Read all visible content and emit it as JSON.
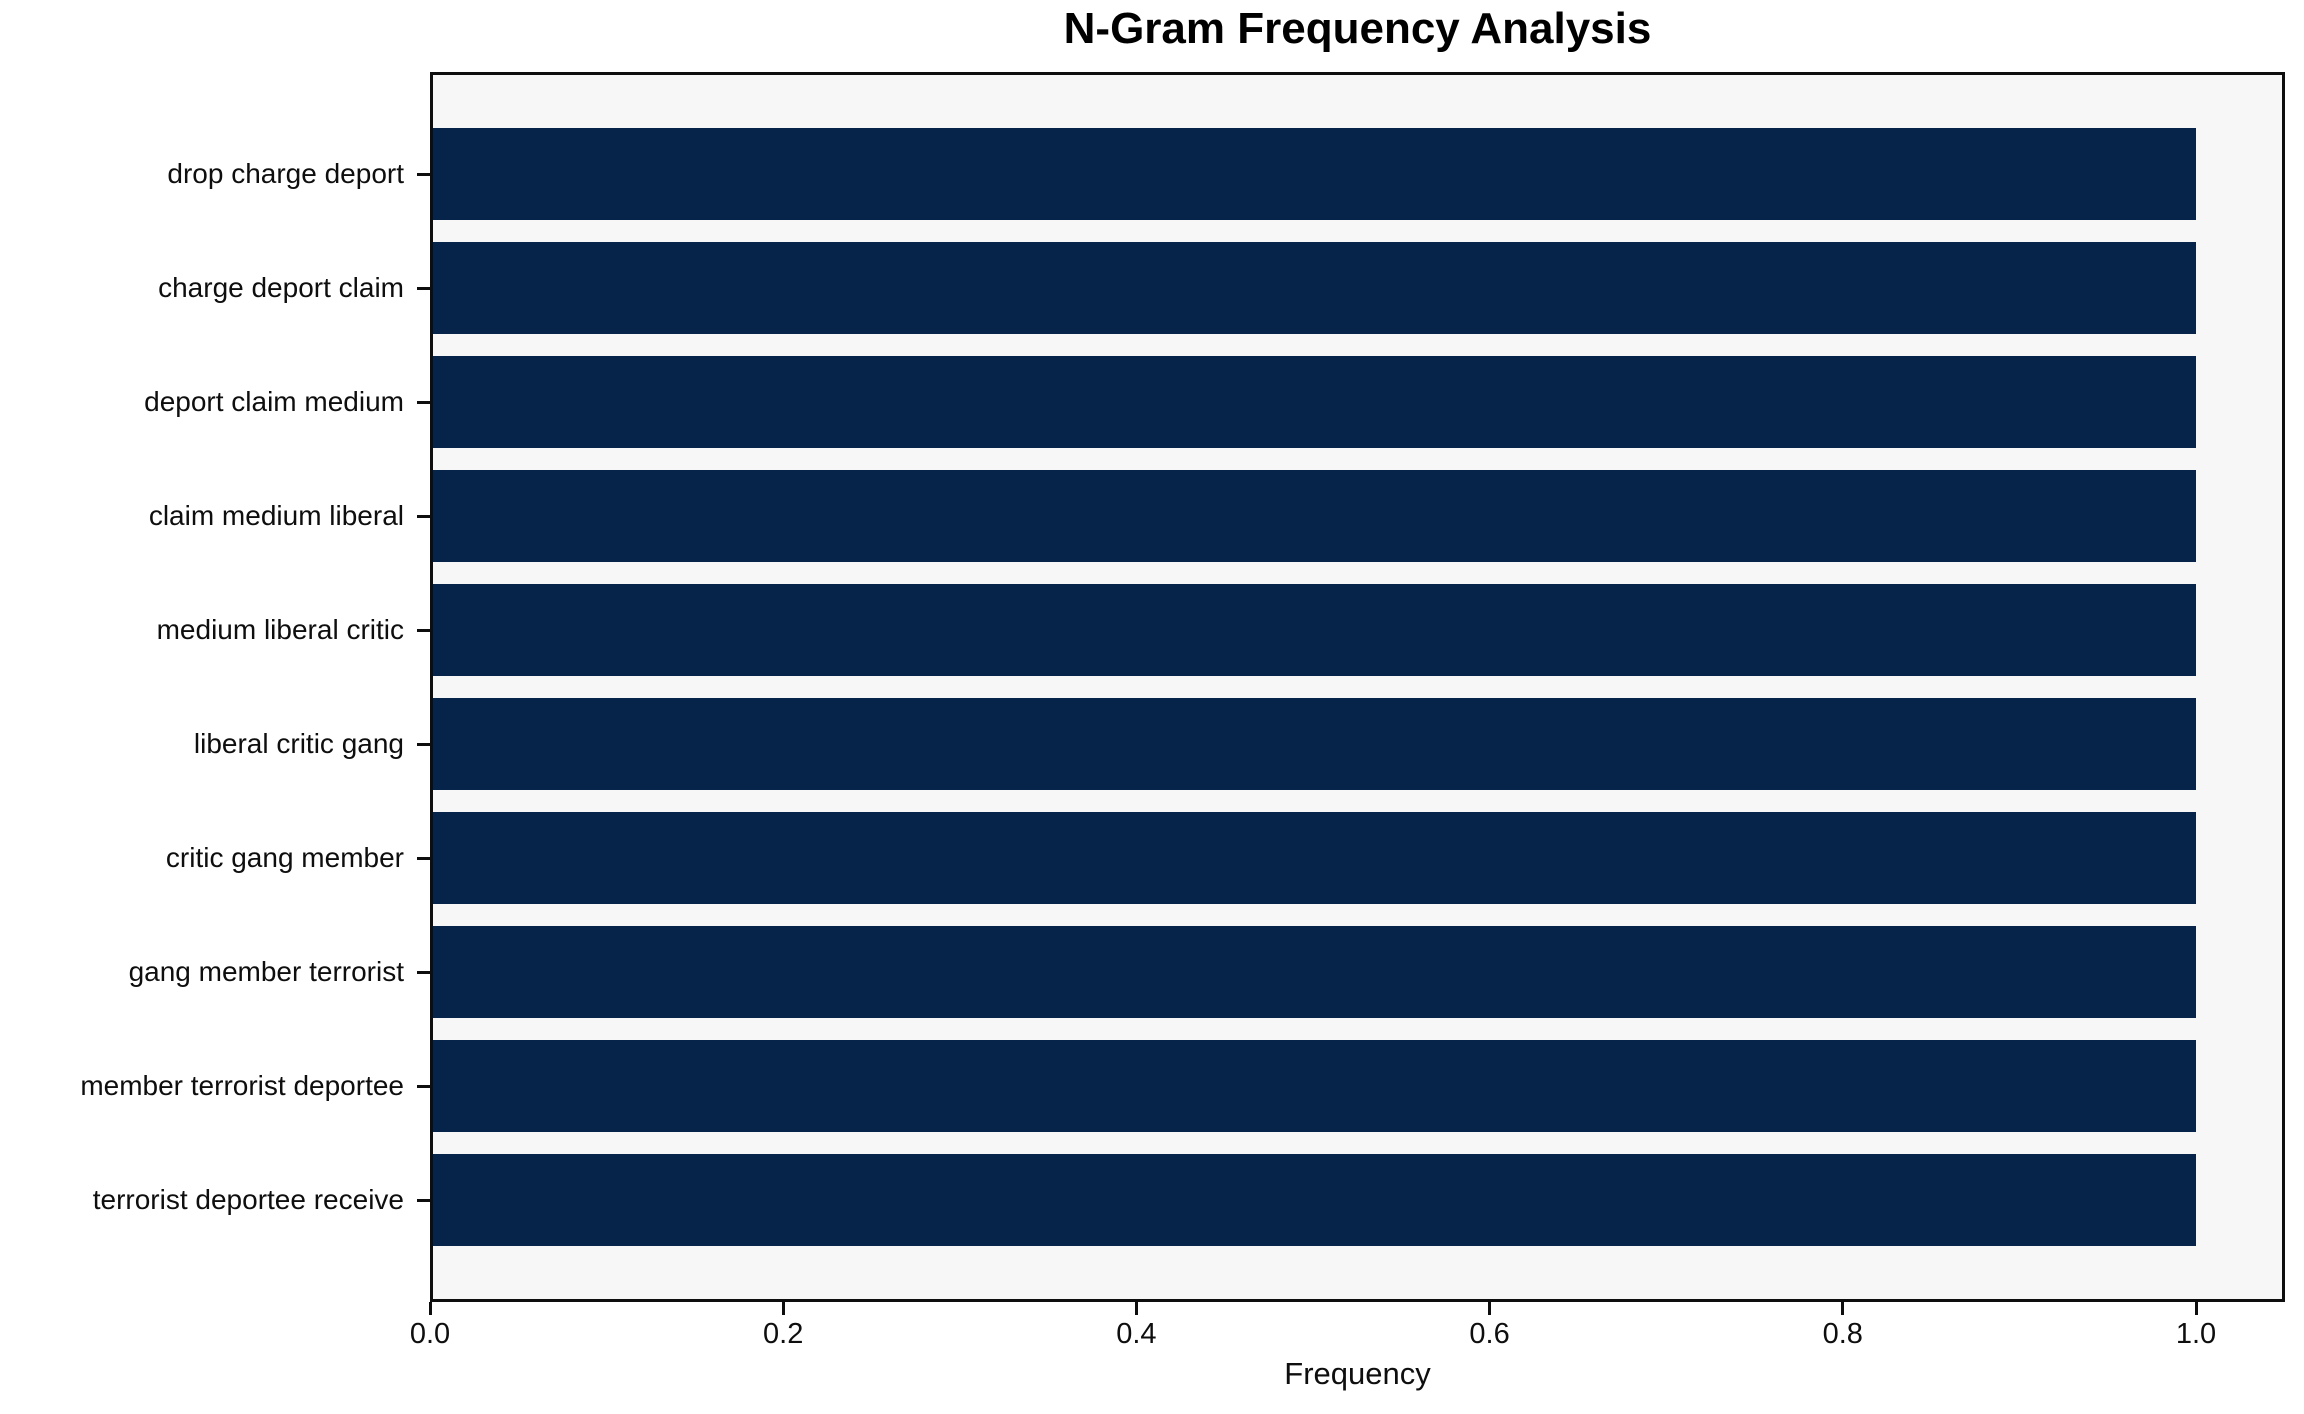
{
  "chart_data": {
    "type": "bar",
    "orientation": "horizontal",
    "title": "N-Gram Frequency Analysis",
    "xlabel": "Frequency",
    "ylabel": "",
    "categories": [
      "drop charge deport",
      "charge deport claim",
      "deport claim medium",
      "claim medium liberal",
      "medium liberal critic",
      "liberal critic gang",
      "critic gang member",
      "gang member terrorist",
      "member terrorist deportee",
      "terrorist deportee receive"
    ],
    "values": [
      1.0,
      1.0,
      1.0,
      1.0,
      1.0,
      1.0,
      1.0,
      1.0,
      1.0,
      1.0
    ],
    "xticks": [
      0.0,
      0.2,
      0.4,
      0.6,
      0.8,
      1.0
    ],
    "xtick_labels": [
      "0.0",
      "0.2",
      "0.4",
      "0.6",
      "0.8",
      "1.0"
    ],
    "xlim": [
      0.0,
      1.05
    ],
    "grid": false,
    "colors": {
      "bar": "#062349",
      "plot_background": "#f7f7f7",
      "figure_background": "#ffffff",
      "spine": "#0e0e0e",
      "text": "#000000"
    }
  }
}
